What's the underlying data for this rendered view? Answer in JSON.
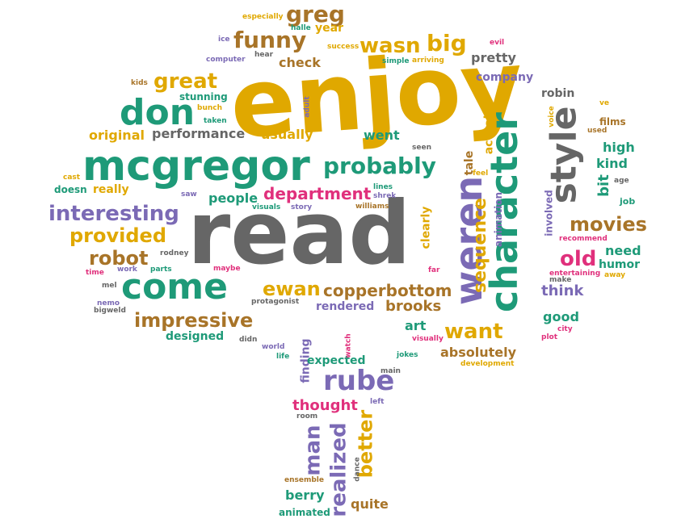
{
  "palette": {
    "gold": "#e0a800",
    "green": "#1e9a78",
    "gray": "#666666",
    "purple": "#7b6ab5",
    "magenta": "#e0307c",
    "brown": "#a87428"
  },
  "words": [
    {
      "text": "enjoy",
      "color": "gold"
    },
    {
      "text": "read",
      "color": "gray"
    },
    {
      "text": "mcgregor",
      "color": "green"
    },
    {
      "text": "character",
      "color": "green"
    },
    {
      "text": "weren",
      "color": "purple"
    },
    {
      "text": "style",
      "color": "gray"
    },
    {
      "text": "come",
      "color": "green"
    },
    {
      "text": "don",
      "color": "green"
    },
    {
      "text": "interesting",
      "color": "purple"
    },
    {
      "text": "probably",
      "color": "green"
    },
    {
      "text": "provided",
      "color": "gold"
    },
    {
      "text": "impressive",
      "color": "brown"
    },
    {
      "text": "rube",
      "color": "purple"
    },
    {
      "text": "great",
      "color": "gold"
    },
    {
      "text": "funny",
      "color": "brown"
    },
    {
      "text": "wasn",
      "color": "gold"
    },
    {
      "text": "big",
      "color": "gold"
    },
    {
      "text": "greg",
      "color": "brown"
    },
    {
      "text": "department",
      "color": "magenta"
    },
    {
      "text": "robot",
      "color": "brown"
    },
    {
      "text": "ewan",
      "color": "gold"
    },
    {
      "text": "copperbottom",
      "color": "brown"
    },
    {
      "text": "movies",
      "color": "brown"
    },
    {
      "text": "old",
      "color": "magenta"
    },
    {
      "text": "want",
      "color": "gold"
    },
    {
      "text": "sequence",
      "color": "gold"
    },
    {
      "text": "realized",
      "color": "purple"
    },
    {
      "text": "man",
      "color": "purple"
    },
    {
      "text": "better",
      "color": "gold"
    },
    {
      "text": "thought",
      "color": "magenta"
    },
    {
      "text": "people",
      "color": "green"
    },
    {
      "text": "usually",
      "color": "gold"
    },
    {
      "text": "went",
      "color": "green"
    },
    {
      "text": "performance",
      "color": "gray"
    },
    {
      "text": "original",
      "color": "gold"
    },
    {
      "text": "check",
      "color": "brown"
    },
    {
      "text": "pretty",
      "color": "gray"
    },
    {
      "text": "company",
      "color": "purple"
    },
    {
      "text": "robin",
      "color": "gray"
    },
    {
      "text": "think",
      "color": "purple"
    },
    {
      "text": "need",
      "color": "green"
    },
    {
      "text": "humor",
      "color": "green"
    },
    {
      "text": "good",
      "color": "green"
    },
    {
      "text": "high",
      "color": "green"
    },
    {
      "text": "kind",
      "color": "green"
    },
    {
      "text": "bit",
      "color": "green"
    },
    {
      "text": "brooks",
      "color": "brown"
    },
    {
      "text": "art",
      "color": "green"
    },
    {
      "text": "absolutely",
      "color": "brown"
    },
    {
      "text": "designed",
      "color": "green"
    },
    {
      "text": "rendered",
      "color": "purple"
    },
    {
      "text": "berry",
      "color": "green"
    },
    {
      "text": "quite",
      "color": "brown"
    },
    {
      "text": "animated",
      "color": "green"
    },
    {
      "text": "finding",
      "color": "purple"
    },
    {
      "text": "expected",
      "color": "green"
    },
    {
      "text": "clearly",
      "color": "gold"
    },
    {
      "text": "really",
      "color": "gold"
    },
    {
      "text": "doesn",
      "color": "green"
    },
    {
      "text": "actually",
      "color": "gold"
    },
    {
      "text": "tale",
      "color": "brown"
    },
    {
      "text": "involved",
      "color": "purple"
    },
    {
      "text": "animation",
      "color": "purple"
    },
    {
      "text": "year",
      "color": "gold"
    },
    {
      "text": "stunning",
      "color": "green"
    },
    {
      "text": "taken",
      "color": "green"
    },
    {
      "text": "bunch",
      "color": "gold"
    },
    {
      "text": "kids",
      "color": "brown"
    },
    {
      "text": "especially",
      "color": "gold"
    },
    {
      "text": "halle",
      "color": "green"
    },
    {
      "text": "success",
      "color": "gold"
    },
    {
      "text": "ice",
      "color": "purple"
    },
    {
      "text": "computer",
      "color": "purple"
    },
    {
      "text": "hear",
      "color": "gray"
    },
    {
      "text": "simple",
      "color": "green"
    },
    {
      "text": "arriving",
      "color": "gold"
    },
    {
      "text": "evil",
      "color": "magenta"
    },
    {
      "text": "films",
      "color": "brown"
    },
    {
      "text": "used",
      "color": "brown"
    },
    {
      "text": "ve",
      "color": "gold"
    },
    {
      "text": "voice",
      "color": "gold"
    },
    {
      "text": "age",
      "color": "gray"
    },
    {
      "text": "job",
      "color": "green"
    },
    {
      "text": "recommend",
      "color": "magenta"
    },
    {
      "text": "make",
      "color": "gray"
    },
    {
      "text": "entertaining",
      "color": "magenta"
    },
    {
      "text": "away",
      "color": "gold"
    },
    {
      "text": "city",
      "color": "magenta"
    },
    {
      "text": "plot",
      "color": "magenta"
    },
    {
      "text": "development",
      "color": "gold"
    },
    {
      "text": "jokes",
      "color": "green"
    },
    {
      "text": "main",
      "color": "gray"
    },
    {
      "text": "left",
      "color": "purple"
    },
    {
      "text": "dance",
      "color": "gray"
    },
    {
      "text": "watch",
      "color": "magenta"
    },
    {
      "text": "world",
      "color": "purple"
    },
    {
      "text": "life",
      "color": "green"
    },
    {
      "text": "didn",
      "color": "gray"
    },
    {
      "text": "ensemble",
      "color": "brown"
    },
    {
      "text": "room",
      "color": "gray"
    },
    {
      "text": "visually",
      "color": "magenta"
    },
    {
      "text": "far",
      "color": "magenta"
    },
    {
      "text": "feel",
      "color": "gold"
    },
    {
      "text": "seen",
      "color": "gray"
    },
    {
      "text": "adult",
      "color": "purple"
    },
    {
      "text": "lines",
      "color": "green"
    },
    {
      "text": "shrek",
      "color": "purple"
    },
    {
      "text": "williams",
      "color": "brown"
    },
    {
      "text": "saw",
      "color": "purple"
    },
    {
      "text": "visuals",
      "color": "green"
    },
    {
      "text": "story",
      "color": "purple"
    },
    {
      "text": "cast",
      "color": "gold"
    },
    {
      "text": "rodney",
      "color": "gray"
    },
    {
      "text": "parts",
      "color": "green"
    },
    {
      "text": "maybe",
      "color": "magenta"
    },
    {
      "text": "time",
      "color": "magenta"
    },
    {
      "text": "work",
      "color": "purple"
    },
    {
      "text": "mel",
      "color": "gray"
    },
    {
      "text": "nemo",
      "color": "purple"
    },
    {
      "text": "bigweld",
      "color": "gray"
    },
    {
      "text": "protagonist",
      "color": "gray"
    }
  ]
}
